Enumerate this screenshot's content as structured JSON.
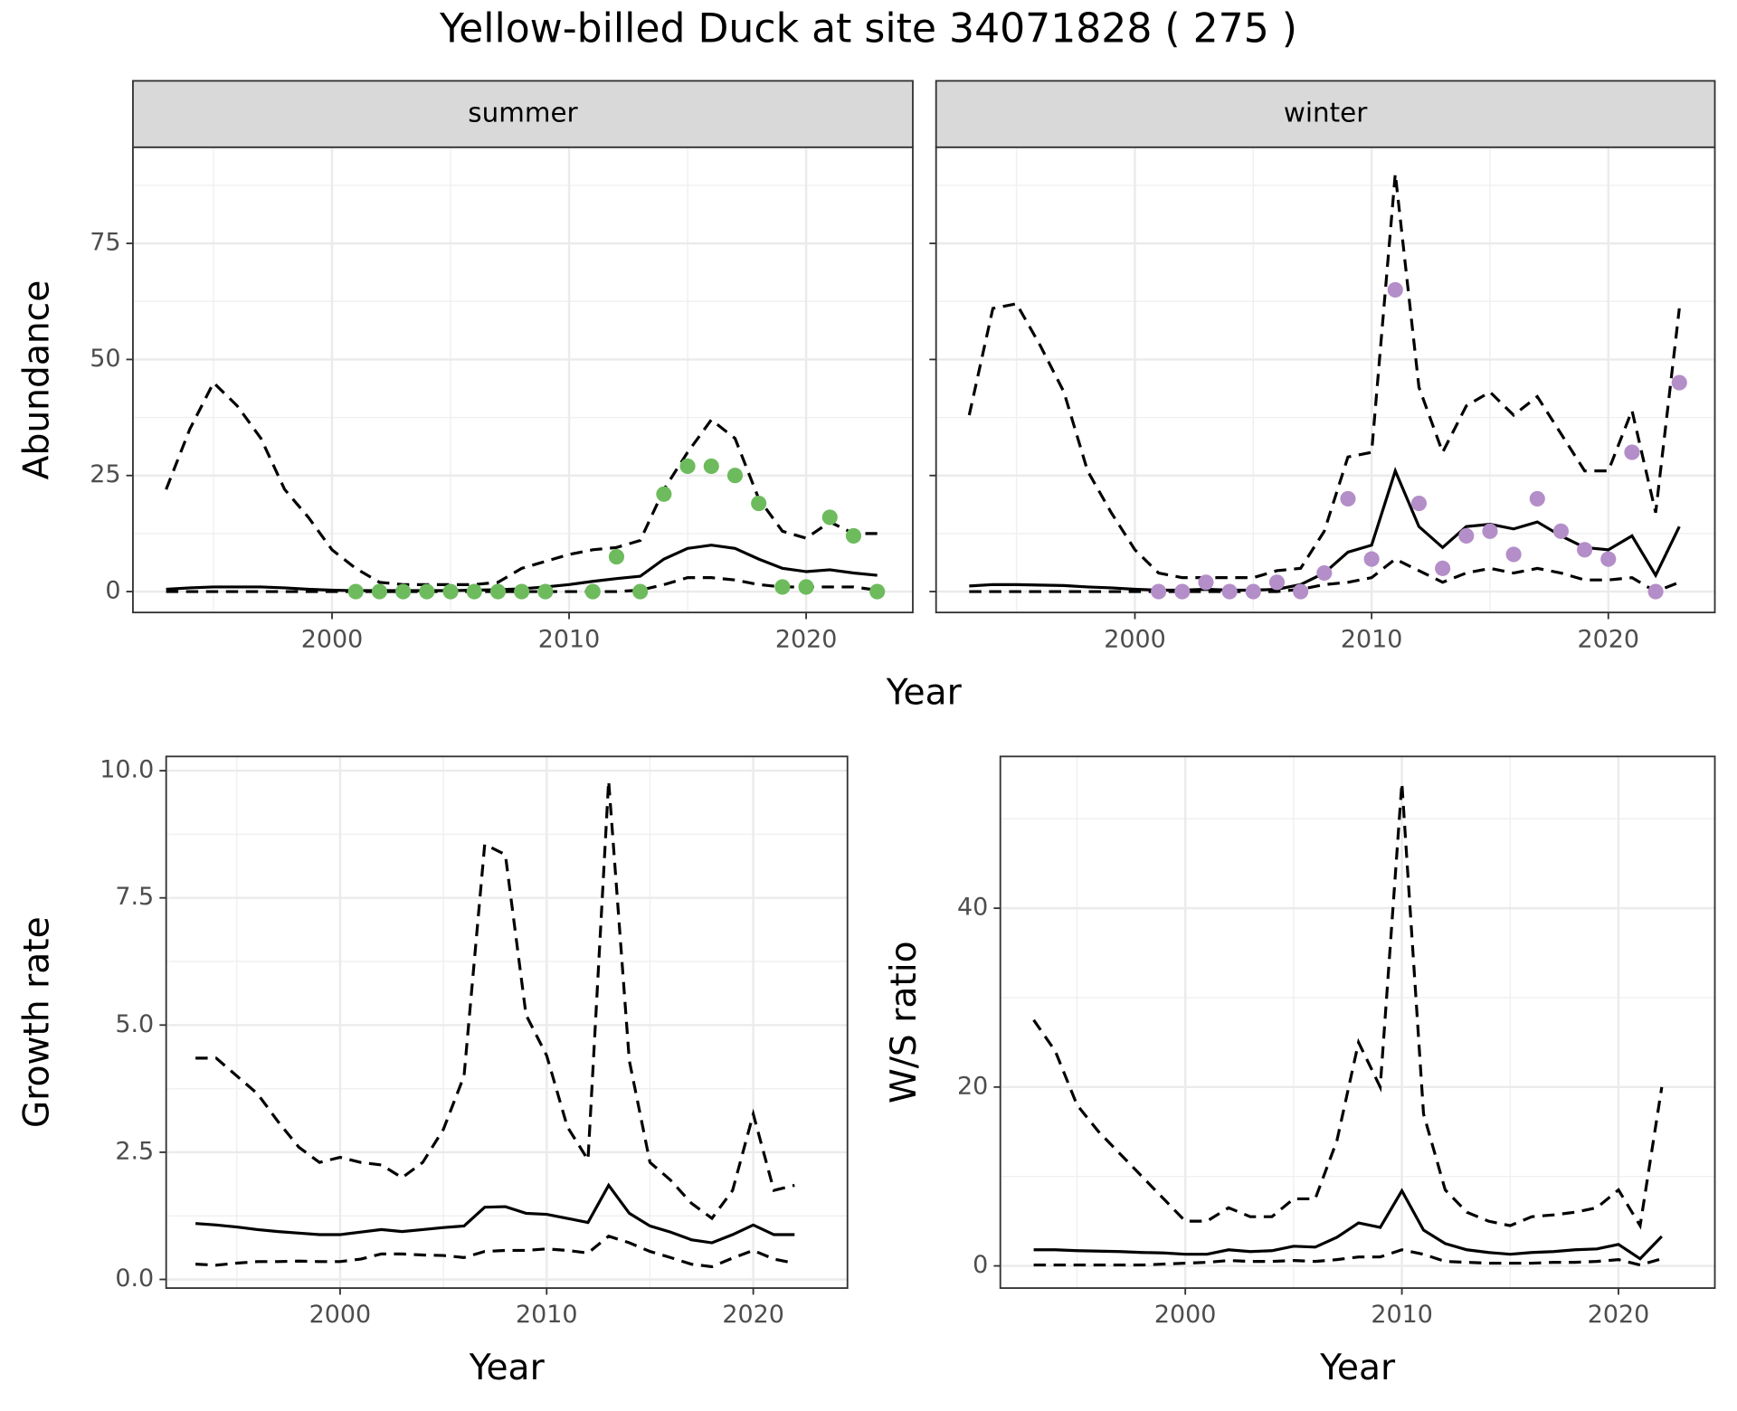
{
  "title": "Yellow-billed Duck at site 34071828 ( 275 )",
  "row_xlabel": "Year",
  "chart_data": [
    {
      "type": "line",
      "facet": "summer",
      "ylabel": "Abundance",
      "grid": true,
      "x": [
        1993,
        1994,
        1995,
        1996,
        1997,
        1998,
        1999,
        2000,
        2001,
        2002,
        2003,
        2004,
        2005,
        2006,
        2007,
        2008,
        2009,
        2010,
        2011,
        2012,
        2013,
        2014,
        2015,
        2016,
        2017,
        2018,
        2019,
        2020,
        2021,
        2022,
        2023
      ],
      "series": [
        {
          "color": "#000000",
          "dash": "solid",
          "values": [
            0.5,
            0.8,
            1,
            1,
            1,
            0.8,
            0.5,
            0.3,
            0.2,
            0.2,
            0.2,
            0.2,
            0.2,
            0.3,
            0.4,
            0.6,
            1,
            1.5,
            2.2,
            2.8,
            3.3,
            7,
            9.3,
            10,
            9.3,
            7,
            5,
            4.3,
            4.7,
            4,
            3.5
          ]
        },
        {
          "color": "#000000",
          "dash": "dashed",
          "values": [
            22,
            35,
            45,
            40,
            33,
            22,
            16,
            9,
            5,
            2,
            1.5,
            1.5,
            1.5,
            1.5,
            2,
            5,
            6.5,
            8,
            9,
            9.5,
            11,
            22,
            30,
            37,
            33,
            20,
            13,
            11.5,
            15,
            12.5,
            12.5
          ]
        },
        {
          "color": "#000000",
          "dash": "dashed",
          "values": [
            0,
            0,
            0,
            0,
            0,
            0,
            0,
            0,
            0,
            0,
            0,
            0,
            0,
            0,
            0,
            0,
            0,
            0,
            0,
            0,
            0.3,
            1.5,
            3,
            3,
            2.5,
            1.5,
            1,
            1,
            1,
            1,
            0.3
          ]
        }
      ],
      "points": {
        "color": "#6dbb5d",
        "x": [
          2001,
          2002,
          2003,
          2004,
          2005,
          2006,
          2007,
          2008,
          2009,
          2011,
          2012,
          2013,
          2014,
          2015,
          2016,
          2017,
          2018,
          2019,
          2020,
          2021,
          2022,
          2023
        ],
        "values": [
          0,
          0,
          0,
          0,
          0,
          0,
          0,
          0,
          0,
          0,
          7.5,
          0,
          21,
          27,
          27,
          25,
          19,
          1,
          1,
          16,
          12,
          0
        ]
      },
      "xlim": [
        1991.6,
        2024.5
      ],
      "xticks": [
        2000,
        2010,
        2020
      ],
      "ylim": [
        -4.5,
        95.7
      ],
      "yticks": [
        0,
        25,
        50,
        75
      ]
    },
    {
      "type": "line",
      "facet": "winter",
      "grid": true,
      "x": [
        1993,
        1994,
        1995,
        1996,
        1997,
        1998,
        1999,
        2000,
        2001,
        2002,
        2003,
        2004,
        2005,
        2006,
        2007,
        2008,
        2009,
        2010,
        2011,
        2012,
        2013,
        2014,
        2015,
        2016,
        2017,
        2018,
        2019,
        2020,
        2021,
        2022,
        2023
      ],
      "series": [
        {
          "color": "#000000",
          "dash": "solid",
          "values": [
            1.2,
            1.5,
            1.5,
            1.4,
            1.3,
            1,
            0.8,
            0.5,
            0.3,
            0.3,
            0.5,
            0.3,
            0.3,
            0.5,
            1.5,
            4,
            8.5,
            10,
            26,
            14,
            9.5,
            14,
            14.5,
            13.5,
            15,
            12,
            9.5,
            9,
            12,
            3.5,
            14
          ]
        },
        {
          "color": "#000000",
          "dash": "dashed",
          "values": [
            38,
            61,
            62,
            53,
            43,
            26,
            17,
            9,
            4,
            3,
            3,
            3,
            3,
            4.5,
            5,
            13,
            29,
            30,
            90,
            44,
            30,
            40,
            43,
            38,
            42,
            34,
            26,
            26,
            39,
            17,
            61
          ]
        },
        {
          "color": "#000000",
          "dash": "dashed",
          "values": [
            0,
            0,
            0,
            0,
            0,
            0,
            0,
            0,
            0,
            0,
            0,
            0,
            0,
            0,
            0.5,
            1.5,
            2,
            3,
            7,
            4.5,
            2,
            4,
            5,
            4,
            5,
            4,
            2.5,
            2.5,
            3,
            0,
            2
          ]
        }
      ],
      "points": {
        "color": "#b48ec8",
        "x": [
          2001,
          2002,
          2003,
          2004,
          2005,
          2006,
          2007,
          2008,
          2009,
          2010,
          2011,
          2012,
          2013,
          2014,
          2015,
          2016,
          2017,
          2018,
          2019,
          2020,
          2021,
          2022,
          2023
        ],
        "values": [
          0,
          0,
          2,
          0,
          0,
          2,
          0,
          4,
          20,
          7,
          65,
          19,
          5,
          12,
          13,
          8,
          20,
          13,
          9,
          7,
          30,
          0,
          45
        ]
      },
      "xlim": [
        1991.6,
        2024.5
      ],
      "xticks": [
        2000,
        2010,
        2020
      ],
      "ylim": [
        -4.5,
        95.7
      ],
      "yticks": [
        0,
        25,
        50,
        75
      ]
    },
    {
      "type": "line",
      "xlabel": "Year",
      "ylabel": "Growth rate",
      "grid": true,
      "x": [
        1993,
        1994,
        1995,
        1996,
        1997,
        1998,
        1999,
        2000,
        2001,
        2002,
        2003,
        2004,
        2005,
        2006,
        2007,
        2008,
        2009,
        2010,
        2011,
        2012,
        2013,
        2014,
        2015,
        2016,
        2017,
        2018,
        2019,
        2020,
        2021,
        2022
      ],
      "series": [
        {
          "color": "#000000",
          "dash": "solid",
          "values": [
            1.1,
            1.07,
            1.03,
            0.98,
            0.94,
            0.91,
            0.88,
            0.88,
            0.93,
            0.98,
            0.94,
            0.98,
            1.02,
            1.05,
            1.42,
            1.43,
            1.3,
            1.28,
            1.2,
            1.12,
            1.85,
            1.3,
            1.05,
            0.93,
            0.78,
            0.72,
            0.88,
            1.07,
            0.88,
            0.88
          ]
        },
        {
          "color": "#000000",
          "dash": "dashed",
          "values": [
            4.35,
            4.35,
            4.0,
            3.65,
            3.1,
            2.6,
            2.3,
            2.4,
            2.3,
            2.25,
            2.0,
            2.3,
            2.95,
            4.0,
            8.55,
            8.35,
            5.2,
            4.4,
            3.0,
            2.35,
            9.8,
            4.3,
            2.3,
            1.95,
            1.5,
            1.2,
            1.75,
            3.25,
            1.75,
            1.85
          ]
        },
        {
          "color": "#000000",
          "dash": "dashed",
          "values": [
            0.3,
            0.28,
            0.32,
            0.35,
            0.35,
            0.36,
            0.35,
            0.35,
            0.4,
            0.5,
            0.5,
            0.48,
            0.47,
            0.43,
            0.55,
            0.57,
            0.57,
            0.6,
            0.57,
            0.52,
            0.85,
            0.72,
            0.55,
            0.43,
            0.3,
            0.25,
            0.42,
            0.57,
            0.4,
            0.32
          ]
        }
      ],
      "xlim": [
        1991.58,
        2024.56
      ],
      "xticks": [
        2000,
        2010,
        2020
      ],
      "ylim": [
        -0.17,
        10.28
      ],
      "yticks": [
        {
          "value": 0,
          "label": "0.0"
        },
        2.5,
        {
          "value": 5,
          "label": "5.0"
        },
        7.5,
        {
          "value": 10,
          "label": "10.0"
        }
      ]
    },
    {
      "type": "line",
      "xlabel": "Year",
      "ylabel": "W/S ratio",
      "grid": true,
      "x": [
        1993,
        1994,
        1995,
        1996,
        1997,
        1998,
        1999,
        2000,
        2001,
        2002,
        2003,
        2004,
        2005,
        2006,
        2007,
        2008,
        2009,
        2010,
        2011,
        2012,
        2013,
        2014,
        2015,
        2016,
        2017,
        2018,
        2019,
        2020,
        2021,
        2022
      ],
      "series": [
        {
          "color": "#000000",
          "dash": "solid",
          "values": [
            1.8,
            1.8,
            1.7,
            1.65,
            1.6,
            1.5,
            1.45,
            1.3,
            1.3,
            1.8,
            1.6,
            1.7,
            2.2,
            2.1,
            3.2,
            4.8,
            4.3,
            8.4,
            4,
            2.5,
            1.8,
            1.5,
            1.3,
            1.5,
            1.6,
            1.8,
            1.9,
            2.4,
            0.8,
            3.3
          ]
        },
        {
          "color": "#000000",
          "dash": "dashed",
          "values": [
            27.5,
            24,
            18,
            15,
            12.5,
            10,
            7.5,
            5,
            5,
            6.5,
            5.5,
            5.5,
            7.5,
            7.5,
            14,
            25,
            20,
            54,
            17,
            8.5,
            6,
            5,
            4.5,
            5.5,
            5.7,
            6,
            6.5,
            8.5,
            4.5,
            20
          ]
        },
        {
          "color": "#000000",
          "dash": "dashed",
          "values": [
            0.1,
            0.1,
            0.1,
            0.1,
            0.1,
            0.1,
            0.2,
            0.3,
            0.4,
            0.6,
            0.5,
            0.5,
            0.6,
            0.5,
            0.7,
            1,
            1,
            1.8,
            1.3,
            0.5,
            0.4,
            0.3,
            0.3,
            0.3,
            0.4,
            0.4,
            0.5,
            0.7,
            0.1,
            0.8
          ]
        }
      ],
      "xlim": [
        1991.46,
        2024.45
      ],
      "xticks": [
        2000,
        2010,
        2020
      ],
      "ylim": [
        -2.48,
        56.97
      ],
      "yticks": [
        0,
        20,
        40
      ]
    }
  ]
}
